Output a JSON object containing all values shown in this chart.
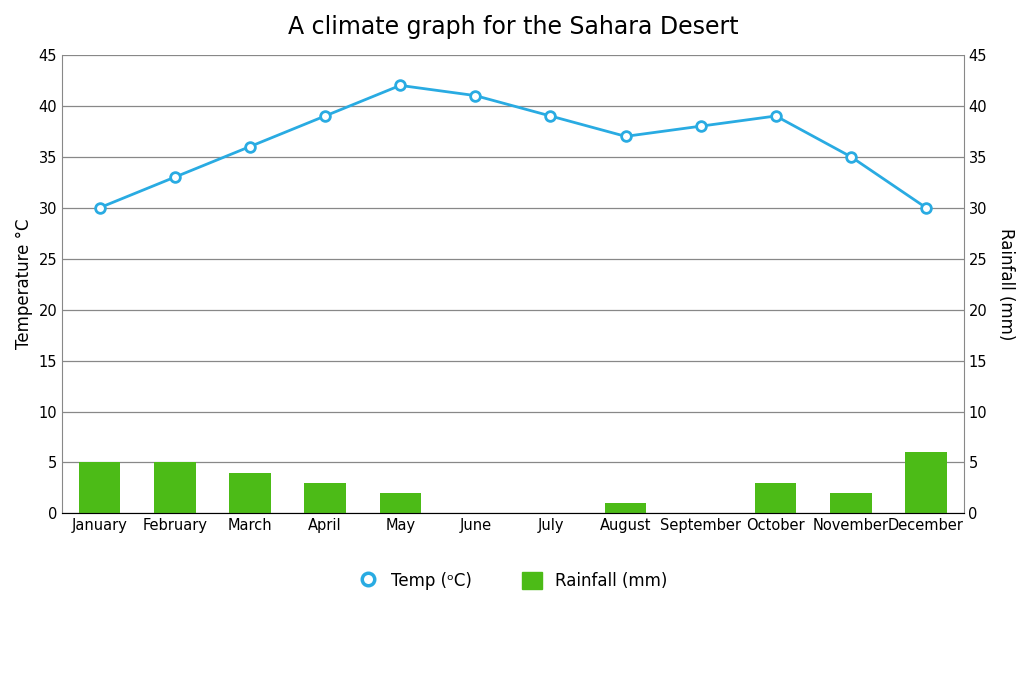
{
  "title": "A climate graph for the Sahara Desert",
  "months": [
    "January",
    "February",
    "March",
    "April",
    "May",
    "June",
    "July",
    "August",
    "September",
    "October",
    "November",
    "December"
  ],
  "temperature": [
    30,
    33,
    36,
    39,
    42,
    41,
    39,
    37,
    38,
    39,
    35,
    30
  ],
  "rainfall": [
    5,
    5,
    4,
    3,
    2,
    0,
    0,
    1,
    0,
    3,
    2,
    6
  ],
  "temp_color": "#29ABE2",
  "rainfall_color": "#4CBB17",
  "ylabel_left": "Temperature °C",
  "ylabel_right": "Rainfall (mm)",
  "ylim_left": [
    0,
    45
  ],
  "ylim_right": [
    0,
    45
  ],
  "yticks": [
    0,
    5,
    10,
    15,
    20,
    25,
    30,
    35,
    40,
    45
  ],
  "legend_temp": "Temp (ᵒC)",
  "legend_rain": "Rainfall (mm)",
  "background_color": "#ffffff",
  "grid_color_major": "#888888",
  "grid_color_minor": "#cccccc",
  "title_fontsize": 17,
  "axis_label_fontsize": 12,
  "tick_fontsize": 10.5,
  "legend_fontsize": 12
}
